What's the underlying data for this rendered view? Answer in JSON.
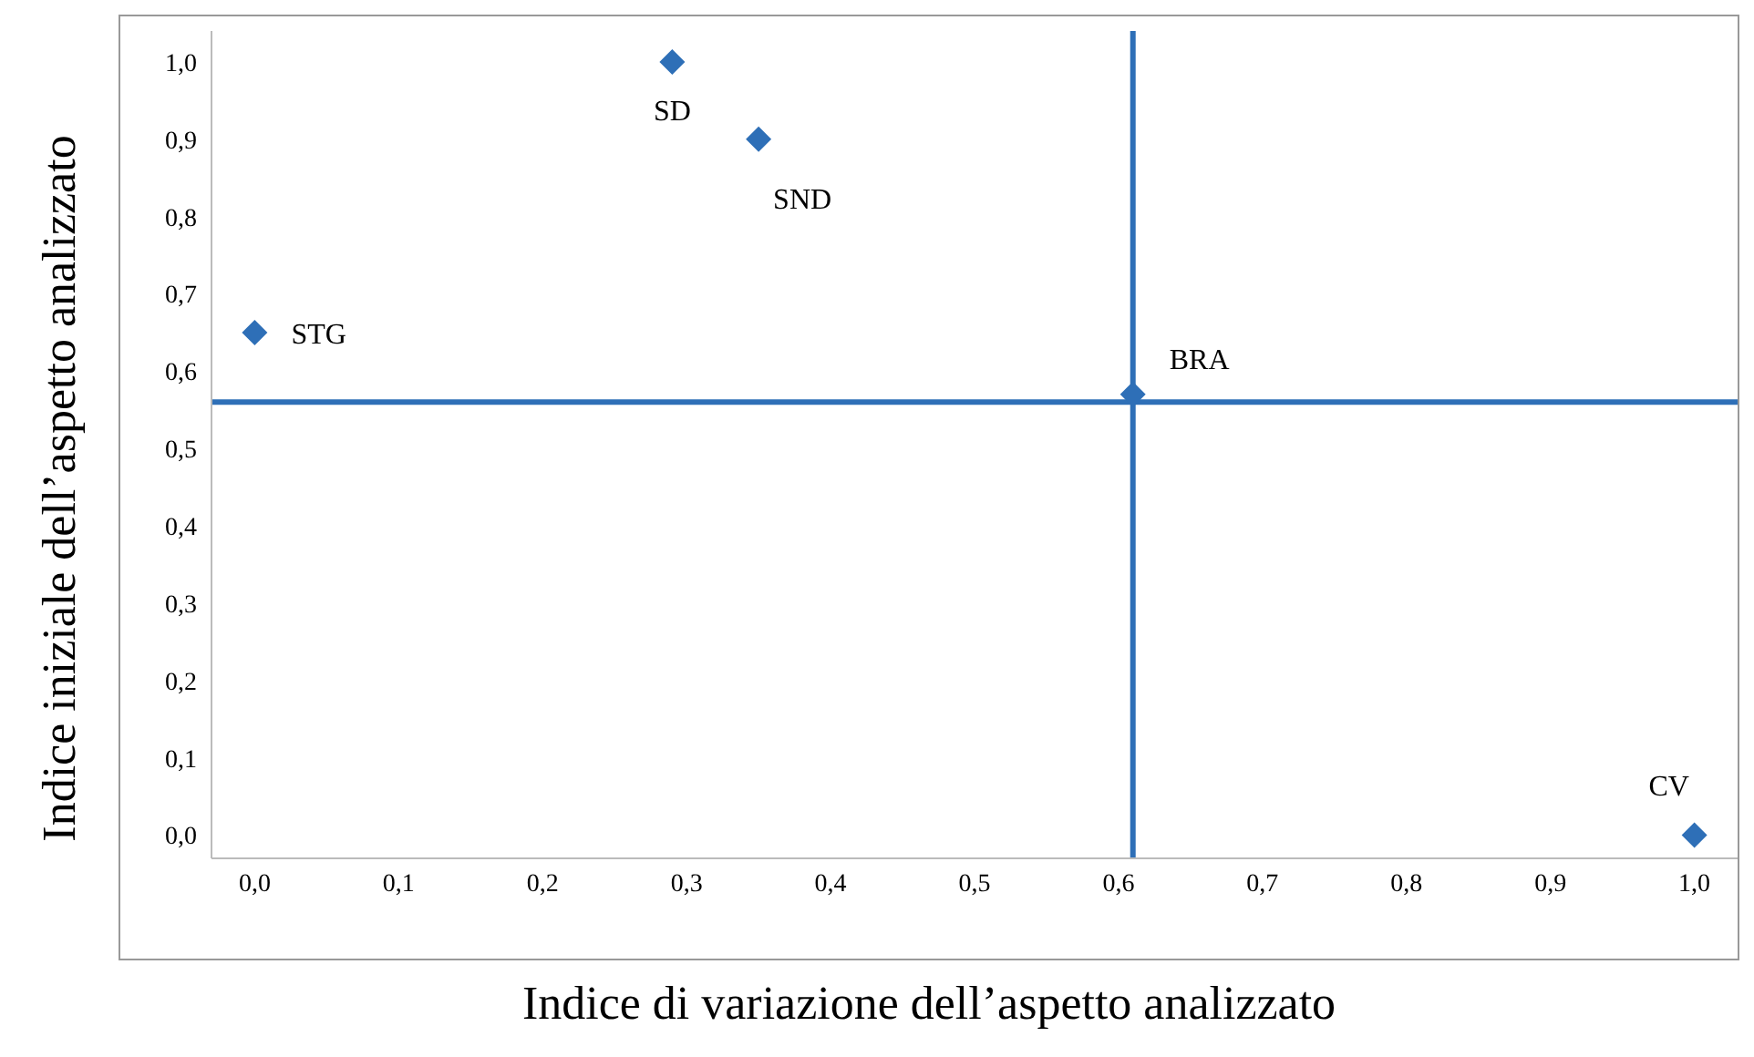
{
  "chart_data": {
    "type": "scatter",
    "xlabel": "Indice di variazione dell’aspetto analizzato",
    "ylabel": "Indice iniziale dell’aspetto analizzato",
    "x": [
      0.29,
      0.35,
      0.0,
      0.61,
      1.0
    ],
    "series": [
      {
        "color": "#2e6fb7",
        "values": [
          1.0,
          0.9,
          0.65,
          0.57,
          0.0
        ]
      }
    ],
    "marker": "diamond",
    "grid": false,
    "legend": false,
    "xlim": [
      -0.03,
      1.03
    ],
    "ylim": [
      -0.03,
      1.04
    ],
    "xticks": [
      {
        "value": 0,
        "label": "0,0"
      },
      {
        "value": 0.1,
        "label": "0,1"
      },
      {
        "value": 0.2,
        "label": "0,2"
      },
      {
        "value": 0.3,
        "label": "0,3"
      },
      {
        "value": 0.4,
        "label": "0,4"
      },
      {
        "value": 0.5,
        "label": "0,5"
      },
      {
        "value": 0.6,
        "label": "0,6"
      },
      {
        "value": 0.7,
        "label": "0,7"
      },
      {
        "value": 0.8,
        "label": "0,8"
      },
      {
        "value": 0.9,
        "label": "0,9"
      },
      {
        "value": 1,
        "label": "1,0"
      }
    ],
    "yticks": [
      {
        "value": 0,
        "label": "0,0"
      },
      {
        "value": 0.1,
        "label": "0,1"
      },
      {
        "value": 0.2,
        "label": "0,2"
      },
      {
        "value": 0.3,
        "label": "0,3"
      },
      {
        "value": 0.4,
        "label": "0,4"
      },
      {
        "value": 0.5,
        "label": "0,5"
      },
      {
        "value": 0.6,
        "label": "0,6"
      },
      {
        "value": 0.7,
        "label": "0,7"
      },
      {
        "value": 0.8,
        "label": "0,8"
      },
      {
        "value": 0.9,
        "label": "0,9"
      },
      {
        "value": 1,
        "label": "1,0"
      }
    ],
    "ref_lines": [
      {
        "axis": "x",
        "value": 0.61,
        "color": "#2e6fb7"
      },
      {
        "axis": "y",
        "value": 0.56,
        "color": "#2e6fb7"
      }
    ],
    "annotations": [
      {
        "text": "SD",
        "x": 0.29,
        "y": 1.0
      },
      {
        "text": "SND",
        "x": 0.35,
        "y": 0.9
      },
      {
        "text": "STG",
        "x": 0.0,
        "y": 0.65
      },
      {
        "text": "BRA",
        "x": 0.61,
        "y": 0.57
      },
      {
        "text": "CV",
        "x": 1.0,
        "y": 0.0
      }
    ]
  }
}
